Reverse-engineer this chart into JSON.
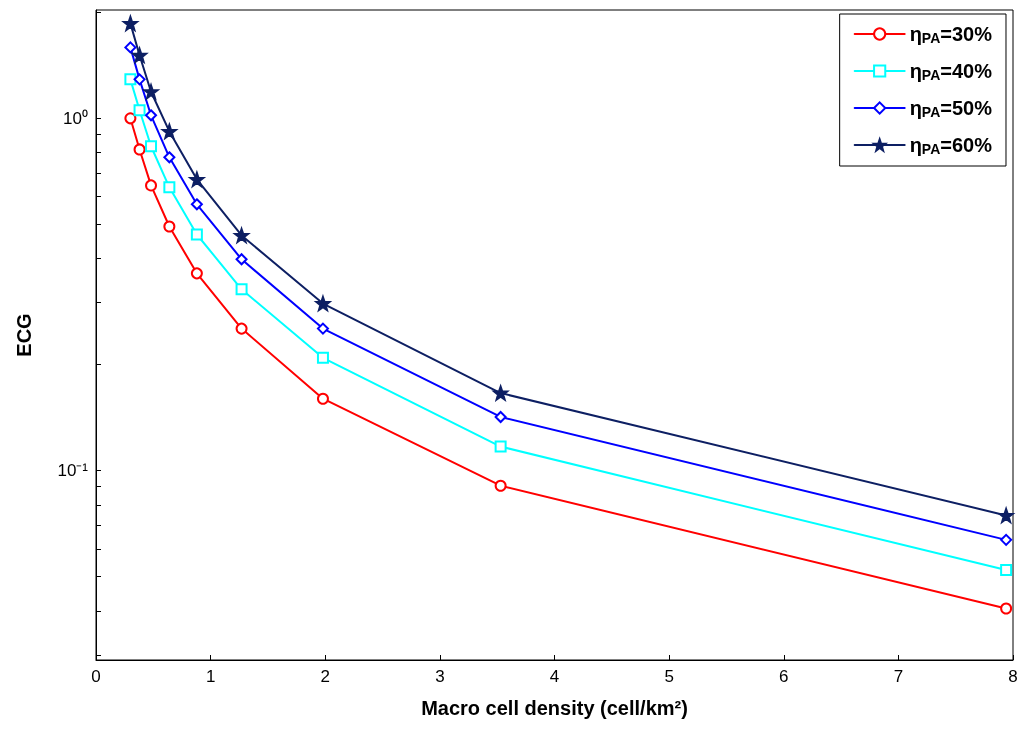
{
  "chart_data": {
    "type": "line",
    "xlabel": "Macro cell density (cell/km²)",
    "ylabel": "ECG",
    "log": "y",
    "grid": false,
    "legend": "top right",
    "line_style": "solid",
    "x": [
      0.3,
      0.38,
      0.48,
      0.64,
      0.88,
      1.27,
      1.98,
      3.53,
      7.94
    ],
    "xlim": [
      0,
      8
    ],
    "xticks": [
      0,
      1,
      2,
      3,
      4,
      5,
      6,
      7,
      8
    ],
    "ylim": [
      0.029,
      2.03
    ],
    "yticks": [
      {
        "value": 0.03,
        "label": null
      },
      {
        "value": 0.04,
        "label": null
      },
      {
        "value": 0.05,
        "label": null
      },
      {
        "value": 0.06,
        "label": null
      },
      {
        "value": 0.07,
        "label": null
      },
      {
        "value": 0.08,
        "label": null
      },
      {
        "value": 0.09,
        "label": null
      },
      {
        "value": 0.1,
        "label": "10⁻¹"
      },
      {
        "value": 0.2,
        "label": null
      },
      {
        "value": 0.3,
        "label": null
      },
      {
        "value": 0.4,
        "label": null
      },
      {
        "value": 0.5,
        "label": null
      },
      {
        "value": 0.6,
        "label": null
      },
      {
        "value": 0.7,
        "label": null
      },
      {
        "value": 0.8,
        "label": null
      },
      {
        "value": 0.9,
        "label": null
      },
      {
        "value": 1,
        "label": "10⁰"
      },
      {
        "value": 2,
        "label": null
      }
    ],
    "series": [
      {
        "name": "η$_{PA}$=30%",
        "color": "#ff0000",
        "marker": "circle",
        "values": [
          1.0,
          0.816,
          0.645,
          0.493,
          0.363,
          0.253,
          0.16,
          0.0906,
          0.0406
        ]
      },
      {
        "name": "η$_{PA}$=40%",
        "color": "#00ffff",
        "marker": "square",
        "values": [
          1.29,
          1.054,
          0.833,
          0.637,
          0.468,
          0.327,
          0.209,
          0.117,
          0.0522
        ]
      },
      {
        "name": "η$_{PA}$=50%",
        "color": "#0000ff",
        "marker": "diamond",
        "values": [
          1.59,
          1.29,
          1.02,
          0.775,
          0.57,
          0.398,
          0.253,
          0.142,
          0.0636
        ]
      },
      {
        "name": "η$_{PA}$=60%",
        "color": "#0d1f63",
        "marker": "star",
        "values": [
          1.86,
          1.51,
          1.19,
          0.918,
          0.671,
          0.465,
          0.298,
          0.166,
          0.0746
        ]
      }
    ]
  }
}
